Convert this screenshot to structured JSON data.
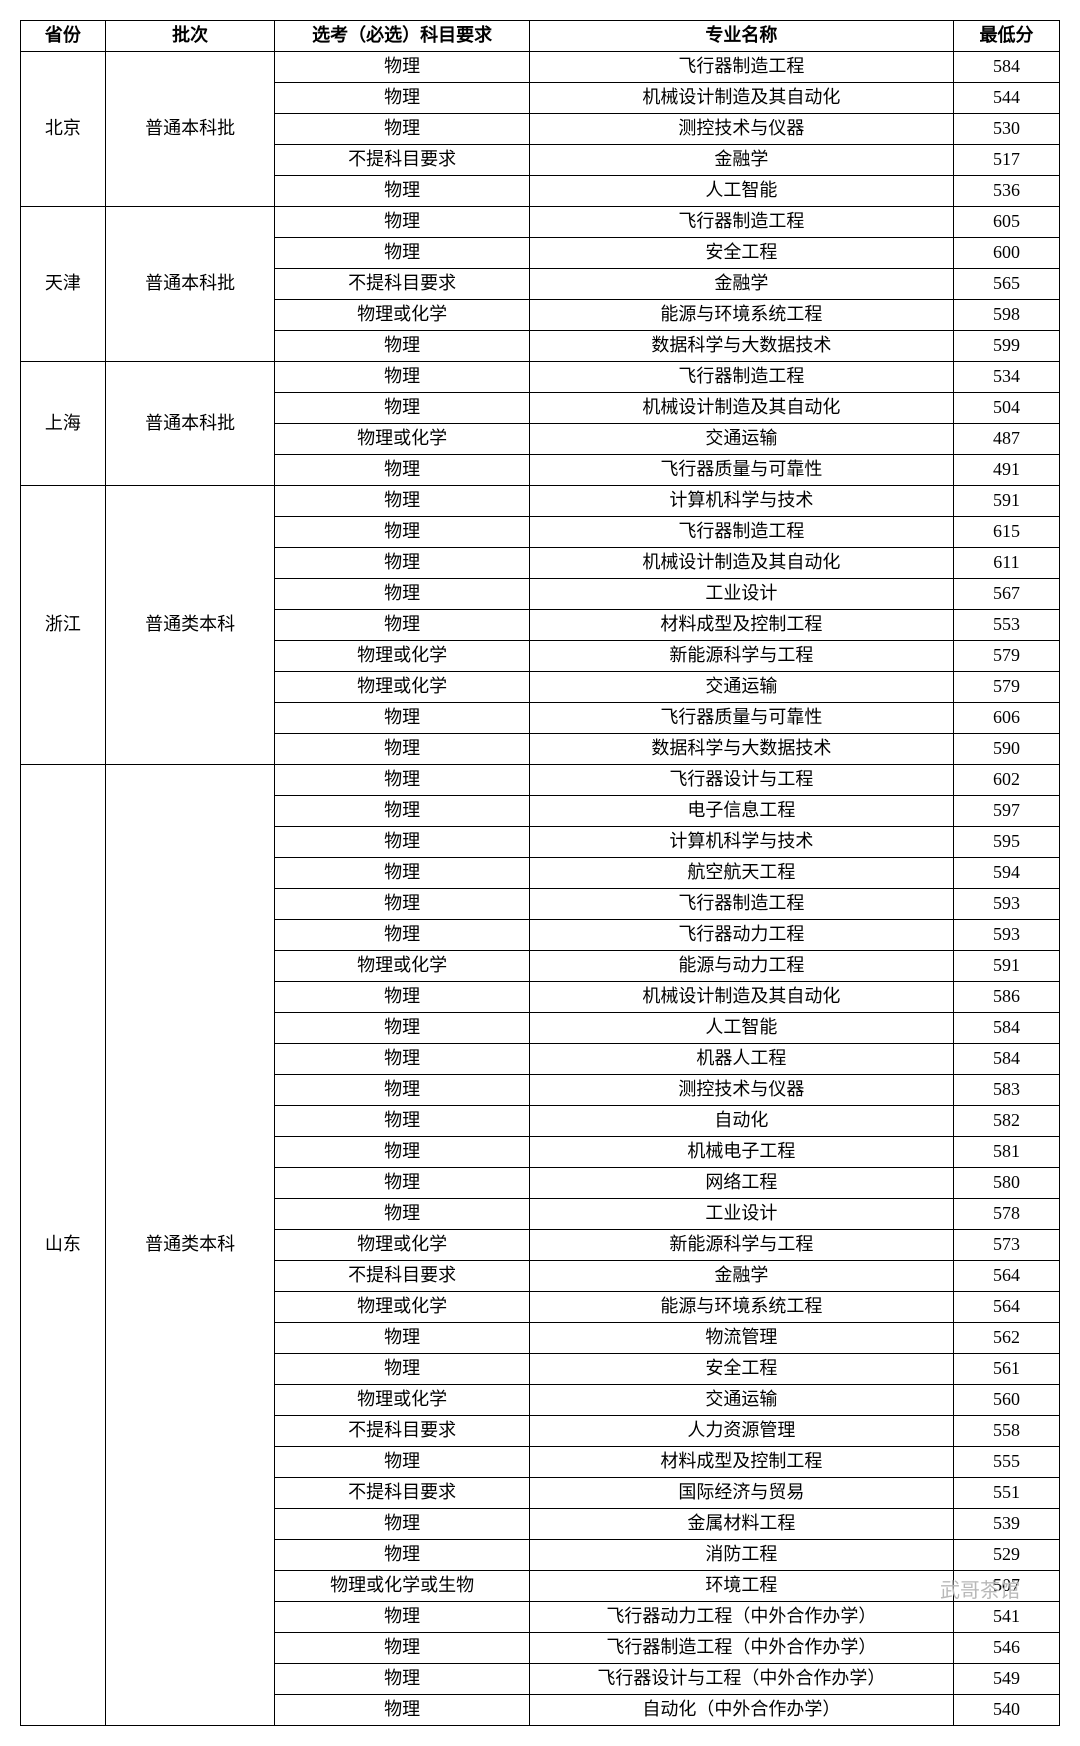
{
  "headers": {
    "province": "省份",
    "batch": "批次",
    "subject": "选考（必选）科目要求",
    "major": "专业名称",
    "score": "最低分"
  },
  "columns": {
    "province_width": 80,
    "batch_width": 160,
    "subject_width": 240,
    "major_width": 400,
    "score_width": 100
  },
  "colors": {
    "background": "#ffffff",
    "text": "#000000",
    "border": "#000000",
    "watermark": "#b8b8b8"
  },
  "font": {
    "family": "SimSun",
    "size_pt": 14,
    "header_weight": "bold"
  },
  "watermark_text": "武哥茶馆",
  "groups": [
    {
      "province": "北京",
      "batch": "普通本科批",
      "rows": [
        {
          "subject": "物理",
          "major": "飞行器制造工程",
          "score": 584
        },
        {
          "subject": "物理",
          "major": "机械设计制造及其自动化",
          "score": 544
        },
        {
          "subject": "物理",
          "major": "测控技术与仪器",
          "score": 530
        },
        {
          "subject": "不提科目要求",
          "major": "金融学",
          "score": 517
        },
        {
          "subject": "物理",
          "major": "人工智能",
          "score": 536
        }
      ]
    },
    {
      "province": "天津",
      "batch": "普通本科批",
      "rows": [
        {
          "subject": "物理",
          "major": "飞行器制造工程",
          "score": 605
        },
        {
          "subject": "物理",
          "major": "安全工程",
          "score": 600
        },
        {
          "subject": "不提科目要求",
          "major": "金融学",
          "score": 565
        },
        {
          "subject": "物理或化学",
          "major": "能源与环境系统工程",
          "score": 598
        },
        {
          "subject": "物理",
          "major": "数据科学与大数据技术",
          "score": 599
        }
      ]
    },
    {
      "province": "上海",
      "batch": "普通本科批",
      "rows": [
        {
          "subject": "物理",
          "major": "飞行器制造工程",
          "score": 534
        },
        {
          "subject": "物理",
          "major": "机械设计制造及其自动化",
          "score": 504
        },
        {
          "subject": "物理或化学",
          "major": "交通运输",
          "score": 487
        },
        {
          "subject": "物理",
          "major": "飞行器质量与可靠性",
          "score": 491
        }
      ]
    },
    {
      "province": "浙江",
      "batch": "普通类本科",
      "rows": [
        {
          "subject": "物理",
          "major": "计算机科学与技术",
          "score": 591
        },
        {
          "subject": "物理",
          "major": "飞行器制造工程",
          "score": 615
        },
        {
          "subject": "物理",
          "major": "机械设计制造及其自动化",
          "score": 611
        },
        {
          "subject": "物理",
          "major": "工业设计",
          "score": 567
        },
        {
          "subject": "物理",
          "major": "材料成型及控制工程",
          "score": 553
        },
        {
          "subject": "物理或化学",
          "major": "新能源科学与工程",
          "score": 579
        },
        {
          "subject": "物理或化学",
          "major": "交通运输",
          "score": 579
        },
        {
          "subject": "物理",
          "major": "飞行器质量与可靠性",
          "score": 606
        },
        {
          "subject": "物理",
          "major": "数据科学与大数据技术",
          "score": 590
        }
      ]
    },
    {
      "province": "山东",
      "batch": "普通类本科",
      "rows": [
        {
          "subject": "物理",
          "major": "飞行器设计与工程",
          "score": 602
        },
        {
          "subject": "物理",
          "major": "电子信息工程",
          "score": 597
        },
        {
          "subject": "物理",
          "major": "计算机科学与技术",
          "score": 595
        },
        {
          "subject": "物理",
          "major": "航空航天工程",
          "score": 594
        },
        {
          "subject": "物理",
          "major": "飞行器制造工程",
          "score": 593
        },
        {
          "subject": "物理",
          "major": "飞行器动力工程",
          "score": 593
        },
        {
          "subject": "物理或化学",
          "major": "能源与动力工程",
          "score": 591
        },
        {
          "subject": "物理",
          "major": "机械设计制造及其自动化",
          "score": 586
        },
        {
          "subject": "物理",
          "major": "人工智能",
          "score": 584
        },
        {
          "subject": "物理",
          "major": "机器人工程",
          "score": 584
        },
        {
          "subject": "物理",
          "major": "测控技术与仪器",
          "score": 583
        },
        {
          "subject": "物理",
          "major": "自动化",
          "score": 582
        },
        {
          "subject": "物理",
          "major": "机械电子工程",
          "score": 581
        },
        {
          "subject": "物理",
          "major": "网络工程",
          "score": 580
        },
        {
          "subject": "物理",
          "major": "工业设计",
          "score": 578
        },
        {
          "subject": "物理或化学",
          "major": "新能源科学与工程",
          "score": 573
        },
        {
          "subject": "不提科目要求",
          "major": "金融学",
          "score": 564
        },
        {
          "subject": "物理或化学",
          "major": "能源与环境系统工程",
          "score": 564
        },
        {
          "subject": "物理",
          "major": "物流管理",
          "score": 562
        },
        {
          "subject": "物理",
          "major": "安全工程",
          "score": 561
        },
        {
          "subject": "物理或化学",
          "major": "交通运输",
          "score": 560
        },
        {
          "subject": "不提科目要求",
          "major": "人力资源管理",
          "score": 558
        },
        {
          "subject": "物理",
          "major": "材料成型及控制工程",
          "score": 555
        },
        {
          "subject": "不提科目要求",
          "major": "国际经济与贸易",
          "score": 551
        },
        {
          "subject": "物理",
          "major": "金属材料工程",
          "score": 539
        },
        {
          "subject": "物理",
          "major": "消防工程",
          "score": 529
        },
        {
          "subject": "物理或化学或生物",
          "major": "环境工程",
          "score": 507
        },
        {
          "subject": "物理",
          "major": "飞行器动力工程（中外合作办学）",
          "score": 541
        },
        {
          "subject": "物理",
          "major": "飞行器制造工程（中外合作办学）",
          "score": 546
        },
        {
          "subject": "物理",
          "major": "飞行器设计与工程（中外合作办学）",
          "score": 549
        },
        {
          "subject": "物理",
          "major": "自动化（中外合作办学）",
          "score": 540
        }
      ]
    }
  ]
}
